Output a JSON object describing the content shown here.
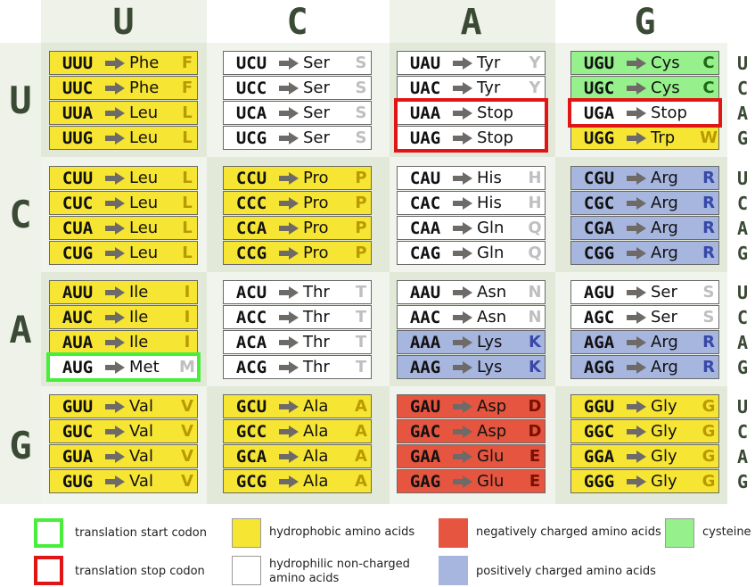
{
  "colors": {
    "hydrophobic": "#f7e534",
    "hydrophilic": "#ffffff",
    "negative": "#e5553f",
    "positive": "#a7b6df",
    "cysteine": "#96f08c",
    "start": "#47ef3b",
    "stop": "#e01515",
    "arrow": "#6e6a68",
    "panelLight": "#f1f4ec",
    "panelDark": "#e2e9d8",
    "headBg": "#eef2e8"
  },
  "first_bases": [
    "U",
    "C",
    "A",
    "G"
  ],
  "second_bases": [
    "U",
    "C",
    "A",
    "G"
  ],
  "third_bases": [
    "U",
    "C",
    "A",
    "G"
  ],
  "codons": [
    {
      "codon": "UUU",
      "aa": "Phe",
      "abbr": "F",
      "cls": "hydrophobic"
    },
    {
      "codon": "UUC",
      "aa": "Phe",
      "abbr": "F",
      "cls": "hydrophobic"
    },
    {
      "codon": "UUA",
      "aa": "Leu",
      "abbr": "L",
      "cls": "hydrophobic"
    },
    {
      "codon": "UUG",
      "aa": "Leu",
      "abbr": "L",
      "cls": "hydrophobic"
    },
    {
      "codon": "UCU",
      "aa": "Ser",
      "abbr": "S",
      "cls": "hydrophilic"
    },
    {
      "codon": "UCC",
      "aa": "Ser",
      "abbr": "S",
      "cls": "hydrophilic"
    },
    {
      "codon": "UCA",
      "aa": "Ser",
      "abbr": "S",
      "cls": "hydrophilic"
    },
    {
      "codon": "UCG",
      "aa": "Ser",
      "abbr": "S",
      "cls": "hydrophilic"
    },
    {
      "codon": "UAU",
      "aa": "Tyr",
      "abbr": "Y",
      "cls": "hydrophilic"
    },
    {
      "codon": "UAC",
      "aa": "Tyr",
      "abbr": "Y",
      "cls": "hydrophilic"
    },
    {
      "codon": "UAA",
      "aa": "Stop",
      "abbr": "",
      "cls": "hydrophilic",
      "mark": "stop"
    },
    {
      "codon": "UAG",
      "aa": "Stop",
      "abbr": "",
      "cls": "hydrophilic",
      "mark": "stop"
    },
    {
      "codon": "UGU",
      "aa": "Cys",
      "abbr": "C",
      "cls": "cysteine"
    },
    {
      "codon": "UGC",
      "aa": "Cys",
      "abbr": "C",
      "cls": "cysteine"
    },
    {
      "codon": "UGA",
      "aa": "Stop",
      "abbr": "",
      "cls": "hydrophilic",
      "mark": "stop"
    },
    {
      "codon": "UGG",
      "aa": "Trp",
      "abbr": "W",
      "cls": "hydrophobic"
    },
    {
      "codon": "CUU",
      "aa": "Leu",
      "abbr": "L",
      "cls": "hydrophobic"
    },
    {
      "codon": "CUC",
      "aa": "Leu",
      "abbr": "L",
      "cls": "hydrophobic"
    },
    {
      "codon": "CUA",
      "aa": "Leu",
      "abbr": "L",
      "cls": "hydrophobic"
    },
    {
      "codon": "CUG",
      "aa": "Leu",
      "abbr": "L",
      "cls": "hydrophobic"
    },
    {
      "codon": "CCU",
      "aa": "Pro",
      "abbr": "P",
      "cls": "hydrophobic"
    },
    {
      "codon": "CCC",
      "aa": "Pro",
      "abbr": "P",
      "cls": "hydrophobic"
    },
    {
      "codon": "CCA",
      "aa": "Pro",
      "abbr": "P",
      "cls": "hydrophobic"
    },
    {
      "codon": "CCG",
      "aa": "Pro",
      "abbr": "P",
      "cls": "hydrophobic"
    },
    {
      "codon": "CAU",
      "aa": "His",
      "abbr": "H",
      "cls": "hydrophilic"
    },
    {
      "codon": "CAC",
      "aa": "His",
      "abbr": "H",
      "cls": "hydrophilic"
    },
    {
      "codon": "CAA",
      "aa": "Gln",
      "abbr": "Q",
      "cls": "hydrophilic"
    },
    {
      "codon": "CAG",
      "aa": "Gln",
      "abbr": "Q",
      "cls": "hydrophilic"
    },
    {
      "codon": "CGU",
      "aa": "Arg",
      "abbr": "R",
      "cls": "positive"
    },
    {
      "codon": "CGC",
      "aa": "Arg",
      "abbr": "R",
      "cls": "positive"
    },
    {
      "codon": "CGA",
      "aa": "Arg",
      "abbr": "R",
      "cls": "positive"
    },
    {
      "codon": "CGG",
      "aa": "Arg",
      "abbr": "R",
      "cls": "positive"
    },
    {
      "codon": "AUU",
      "aa": "Ile",
      "abbr": "I",
      "cls": "hydrophobic"
    },
    {
      "codon": "AUC",
      "aa": "Ile",
      "abbr": "I",
      "cls": "hydrophobic"
    },
    {
      "codon": "AUA",
      "aa": "Ile",
      "abbr": "I",
      "cls": "hydrophobic"
    },
    {
      "codon": "AUG",
      "aa": "Met",
      "abbr": "M",
      "cls": "hydrophilic",
      "mark": "start"
    },
    {
      "codon": "ACU",
      "aa": "Thr",
      "abbr": "T",
      "cls": "hydrophilic"
    },
    {
      "codon": "ACC",
      "aa": "Thr",
      "abbr": "T",
      "cls": "hydrophilic"
    },
    {
      "codon": "ACA",
      "aa": "Thr",
      "abbr": "T",
      "cls": "hydrophilic"
    },
    {
      "codon": "ACG",
      "aa": "Thr",
      "abbr": "T",
      "cls": "hydrophilic"
    },
    {
      "codon": "AAU",
      "aa": "Asn",
      "abbr": "N",
      "cls": "hydrophilic"
    },
    {
      "codon": "AAC",
      "aa": "Asn",
      "abbr": "N",
      "cls": "hydrophilic"
    },
    {
      "codon": "AAA",
      "aa": "Lys",
      "abbr": "K",
      "cls": "positive"
    },
    {
      "codon": "AAG",
      "aa": "Lys",
      "abbr": "K",
      "cls": "positive"
    },
    {
      "codon": "AGU",
      "aa": "Ser",
      "abbr": "S",
      "cls": "hydrophilic"
    },
    {
      "codon": "AGC",
      "aa": "Ser",
      "abbr": "S",
      "cls": "hydrophilic"
    },
    {
      "codon": "AGA",
      "aa": "Arg",
      "abbr": "R",
      "cls": "positive"
    },
    {
      "codon": "AGG",
      "aa": "Arg",
      "abbr": "R",
      "cls": "positive"
    },
    {
      "codon": "GUU",
      "aa": "Val",
      "abbr": "V",
      "cls": "hydrophobic"
    },
    {
      "codon": "GUC",
      "aa": "Val",
      "abbr": "V",
      "cls": "hydrophobic"
    },
    {
      "codon": "GUA",
      "aa": "Val",
      "abbr": "V",
      "cls": "hydrophobic"
    },
    {
      "codon": "GUG",
      "aa": "Val",
      "abbr": "V",
      "cls": "hydrophobic"
    },
    {
      "codon": "GCU",
      "aa": "Ala",
      "abbr": "A",
      "cls": "hydrophobic"
    },
    {
      "codon": "GCC",
      "aa": "Ala",
      "abbr": "A",
      "cls": "hydrophobic"
    },
    {
      "codon": "GCA",
      "aa": "Ala",
      "abbr": "A",
      "cls": "hydrophobic"
    },
    {
      "codon": "GCG",
      "aa": "Ala",
      "abbr": "A",
      "cls": "hydrophobic"
    },
    {
      "codon": "GAU",
      "aa": "Asp",
      "abbr": "D",
      "cls": "negative"
    },
    {
      "codon": "GAC",
      "aa": "Asp",
      "abbr": "D",
      "cls": "negative"
    },
    {
      "codon": "GAA",
      "aa": "Glu",
      "abbr": "E",
      "cls": "negative"
    },
    {
      "codon": "GAG",
      "aa": "Glu",
      "abbr": "E",
      "cls": "negative"
    },
    {
      "codon": "GGU",
      "aa": "Gly",
      "abbr": "G",
      "cls": "hydrophobic"
    },
    {
      "codon": "GGC",
      "aa": "Gly",
      "abbr": "G",
      "cls": "hydrophobic"
    },
    {
      "codon": "GGA",
      "aa": "Gly",
      "abbr": "G",
      "cls": "hydrophobic"
    },
    {
      "codon": "GGG",
      "aa": "Gly",
      "abbr": "G",
      "cls": "hydrophobic"
    }
  ],
  "legend": {
    "start": "translation start codon",
    "stop": "translation stop codon",
    "hydrophobic": "hydrophobic amino acids",
    "hydrophilic": "hydrophilic non-charged amino acids",
    "negative": "negatively charged amino acids",
    "positive": "positively charged amino acids",
    "cysteine": "cysteine"
  }
}
